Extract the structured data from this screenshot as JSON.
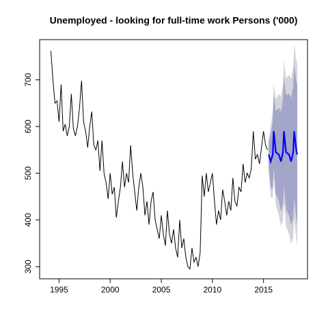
{
  "chart_data": {
    "type": "line",
    "title": "Unemployed - looking for full-time work Persons ('000)",
    "xlim": [
      1993.1,
      2019.3
    ],
    "ylim": [
      274,
      786
    ],
    "xticks": [
      1995,
      2000,
      2005,
      2010,
      2015
    ],
    "yticks": [
      300,
      400,
      500,
      600,
      700
    ],
    "bands": [
      {
        "color": "#d4d4dc",
        "x": [
          2015.5,
          2015.7,
          2015.9,
          2016.0,
          2016.2,
          2016.5,
          2016.7,
          2016.9,
          2017.0,
          2017.2,
          2017.5,
          2017.7,
          2017.9,
          2018.0,
          2018.2,
          2018.3
        ],
        "lower": [
          507,
          450,
          446,
          489,
          431,
          410,
          386,
          398,
          438,
          386,
          370,
          348,
          362,
          404,
          358,
          345
        ],
        "upper": [
          573,
          600,
          634,
          691,
          659,
          670,
          664,
          692,
          742,
          704,
          710,
          702,
          728,
          776,
          742,
          735
        ]
      },
      {
        "color": "#a3a6c8",
        "x": [
          2015.5,
          2015.7,
          2015.9,
          2016.0,
          2016.2,
          2016.5,
          2016.7,
          2016.9,
          2017.0,
          2017.2,
          2017.5,
          2017.7,
          2017.9,
          2018.0,
          2018.2,
          2018.3
        ],
        "lower": [
          515,
          467,
          468,
          512,
          457,
          440,
          418,
          432,
          473,
          423,
          409,
          389,
          404,
          447,
          402,
          390
        ],
        "upper": [
          565,
          583,
          612,
          668,
          633,
          640,
          632,
          658,
          707,
          667,
          671,
          661,
          686,
          733,
          698,
          690
        ]
      }
    ],
    "series": [
      {
        "color": "#000000",
        "width": 1,
        "x": [
          1994.2,
          1994.4,
          1994.6,
          1994.8,
          1995.0,
          1995.2,
          1995.4,
          1995.6,
          1995.8,
          1996.0,
          1996.2,
          1996.4,
          1996.6,
          1996.8,
          1997.0,
          1997.2,
          1997.4,
          1997.6,
          1997.8,
          1998.0,
          1998.2,
          1998.4,
          1998.6,
          1998.8,
          1999.0,
          1999.2,
          1999.4,
          1999.6,
          1999.8,
          2000.0,
          2000.2,
          2000.4,
          2000.6,
          2000.8,
          2001.0,
          2001.2,
          2001.4,
          2001.6,
          2001.8,
          2002.0,
          2002.2,
          2002.4,
          2002.6,
          2002.8,
          2003.0,
          2003.2,
          2003.4,
          2003.6,
          2003.8,
          2004.0,
          2004.2,
          2004.4,
          2004.6,
          2004.8,
          2005.0,
          2005.2,
          2005.4,
          2005.6,
          2005.8,
          2006.0,
          2006.2,
          2006.4,
          2006.6,
          2006.8,
          2007.0,
          2007.2,
          2007.4,
          2007.6,
          2007.8,
          2008.0,
          2008.2,
          2008.4,
          2008.6,
          2008.8,
          2009.0,
          2009.2,
          2009.4,
          2009.6,
          2009.8,
          2010.0,
          2010.2,
          2010.4,
          2010.6,
          2010.8,
          2011.0,
          2011.2,
          2011.4,
          2011.6,
          2011.8,
          2012.0,
          2012.2,
          2012.4,
          2012.6,
          2012.8,
          2013.0,
          2013.2,
          2013.4,
          2013.6,
          2013.8,
          2014.0,
          2014.2,
          2014.4,
          2014.6,
          2014.8,
          2015.0,
          2015.2,
          2015.4
        ],
        "values": [
          762,
          700,
          650,
          655,
          610,
          690,
          590,
          605,
          580,
          600,
          670,
          595,
          580,
          600,
          640,
          698,
          610,
          590,
          555,
          600,
          632,
          560,
          550,
          570,
          505,
          570,
          500,
          480,
          445,
          500,
          455,
          470,
          405,
          440,
          470,
          525,
          470,
          500,
          480,
          560,
          500,
          460,
          420,
          470,
          500,
          470,
          410,
          440,
          390,
          440,
          460,
          400,
          380,
          360,
          410,
          370,
          345,
          420,
          370,
          350,
          380,
          340,
          320,
          400,
          340,
          360,
          320,
          300,
          295,
          340,
          310,
          320,
          300,
          330,
          495,
          450,
          500,
          460,
          480,
          500,
          440,
          390,
          420,
          400,
          465,
          440,
          410,
          440,
          420,
          490,
          440,
          430,
          470,
          460,
          520,
          480,
          500,
          490,
          510,
          590,
          530,
          540,
          520,
          555,
          590,
          560,
          550
        ]
      },
      {
        "color": "#0000ff",
        "width": 2.2,
        "x": [
          2015.5,
          2015.7,
          2015.9,
          2016.0,
          2016.2,
          2016.5,
          2016.7,
          2016.9,
          2017.0,
          2017.2,
          2017.5,
          2017.7,
          2017.9,
          2018.0,
          2018.2,
          2018.3
        ],
        "values": [
          540,
          525,
          540,
          590,
          545,
          540,
          525,
          545,
          590,
          545,
          540,
          525,
          545,
          590,
          550,
          540
        ]
      }
    ]
  }
}
